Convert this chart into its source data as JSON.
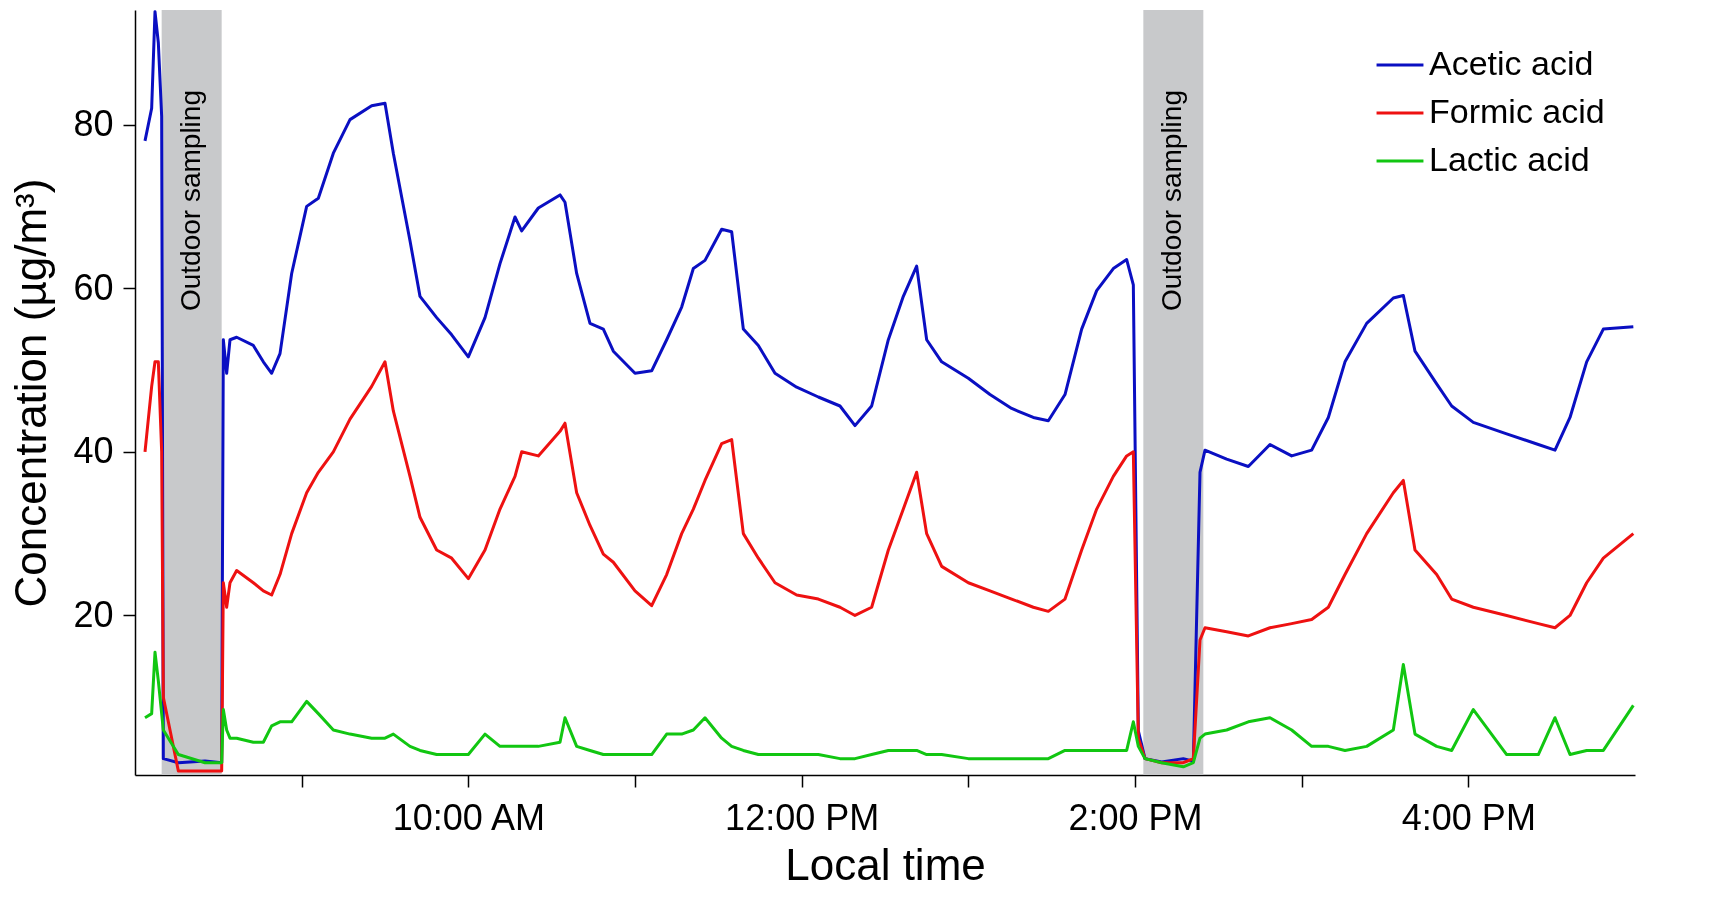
{
  "chart_data": {
    "type": "line",
    "xlabel": "Local time",
    "ylabel": "Concentration (µg/m³)",
    "xlim": [
      8.0,
      17.0
    ],
    "ylim": [
      0.5,
      94
    ],
    "xticks": [
      {
        "value": 9,
        "label": null
      },
      {
        "value": 10,
        "label": "10:00 AM"
      },
      {
        "value": 11,
        "label": null
      },
      {
        "value": 12,
        "label": "12:00 PM"
      },
      {
        "value": 13,
        "label": null
      },
      {
        "value": 14,
        "label": "2:00 PM"
      },
      {
        "value": 15,
        "label": null
      },
      {
        "value": 16,
        "label": "4:00 PM"
      }
    ],
    "yticks": [
      20,
      40,
      60,
      80
    ],
    "grid": false,
    "legend": "top right",
    "bands": [
      {
        "axis": "x",
        "from": 8.16,
        "to": 8.52,
        "label": "Outdoor sampling",
        "color": "#c8c9cb"
      },
      {
        "axis": "x",
        "from": 14.05,
        "to": 14.41,
        "label": "Outdoor sampling",
        "color": "#c8c9cb"
      }
    ],
    "x": [
      8.06,
      8.1,
      8.12,
      8.14,
      8.16,
      8.17,
      8.26,
      8.42,
      8.52,
      8.53,
      8.55,
      8.57,
      8.61,
      8.71,
      8.77,
      8.82,
      8.87,
      8.94,
      9.03,
      9.1,
      9.19,
      9.29,
      9.42,
      9.5,
      9.55,
      9.65,
      9.71,
      9.81,
      9.9,
      10.0,
      10.1,
      10.19,
      10.28,
      10.32,
      10.42,
      10.55,
      10.58,
      10.65,
      10.73,
      10.81,
      10.87,
      11.0,
      11.1,
      11.19,
      11.28,
      11.35,
      11.42,
      11.52,
      11.58,
      11.65,
      11.74,
      11.84,
      11.97,
      12.1,
      12.23,
      12.32,
      12.42,
      12.52,
      12.61,
      12.69,
      12.75,
      12.84,
      13.0,
      13.13,
      13.26,
      13.39,
      13.48,
      13.58,
      13.68,
      13.77,
      13.87,
      13.95,
      13.99,
      14.02,
      14.06,
      14.16,
      14.29,
      14.35,
      14.39,
      14.42,
      14.55,
      14.68,
      14.81,
      14.94,
      15.06,
      15.16,
      15.26,
      15.39,
      15.55,
      15.61,
      15.68,
      15.81,
      15.9,
      16.03,
      16.23,
      16.42,
      16.52,
      16.61,
      16.71,
      16.81,
      16.99
    ],
    "series": [
      {
        "name": "Acetic acid",
        "color": "#0a0fc2",
        "values": [
          78,
          82,
          93.8,
          90,
          81,
          2.5,
          2,
          2.2,
          2,
          53.7,
          49.6,
          53.7,
          54,
          53,
          51,
          49.6,
          52,
          61.8,
          70,
          71,
          76.5,
          80.6,
          82.3,
          82.6,
          76.5,
          65.8,
          59,
          56.4,
          54.3,
          51.6,
          56.4,
          63,
          68.7,
          67,
          69.8,
          71.4,
          70.5,
          61.8,
          55.7,
          55,
          52.3,
          49.6,
          49.9,
          53.7,
          57.7,
          62.4,
          63.4,
          67.2,
          66.9,
          55,
          53,
          49.6,
          47.9,
          46.7,
          45.6,
          43.2,
          45.6,
          53.7,
          59,
          62.7,
          53.7,
          51,
          49,
          47,
          45.3,
          44.2,
          43.8,
          47,
          55,
          59.7,
          62.4,
          63.5,
          60.4,
          5.9,
          2.5,
          2.1,
          2.5,
          2.2,
          37.5,
          40.2,
          39.1,
          38.2,
          40.9,
          39.5,
          40.2,
          44.2,
          51,
          55.7,
          58.8,
          59.1,
          52.3,
          48.3,
          45.6,
          43.6,
          42.2,
          40.9,
          40.2,
          44.2,
          51,
          55,
          55.3
        ]
      },
      {
        "name": "Formic acid",
        "color": "#ee1111",
        "values": [
          40,
          48,
          51,
          51,
          40,
          10,
          1,
          1,
          1,
          24,
          21,
          24,
          25.5,
          24,
          23,
          22.5,
          25,
          30,
          35,
          37.5,
          40,
          44,
          48,
          51,
          45,
          37,
          32,
          28,
          27,
          24.5,
          28,
          33,
          37,
          40,
          39.5,
          42.5,
          43.5,
          35,
          31,
          27.5,
          26.5,
          23,
          21.2,
          25,
          30,
          33,
          36.5,
          41,
          41.5,
          30,
          27,
          24,
          22.5,
          22,
          21,
          20,
          21,
          28,
          33,
          37.5,
          30,
          26,
          24,
          23,
          22,
          21,
          20.5,
          22,
          28,
          33,
          37,
          39.5,
          40,
          5,
          2.5,
          2,
          2,
          2.5,
          17,
          18.5,
          18,
          17.5,
          18.5,
          19,
          19.5,
          21,
          25,
          30,
          35,
          36.5,
          28,
          25,
          22,
          21,
          20,
          19,
          18.5,
          20,
          24,
          27,
          30
        ]
      },
      {
        "name": "Lactic acid",
        "color": "#11c611",
        "values": [
          7.5,
          8,
          15.5,
          12,
          8,
          6,
          3,
          2,
          2,
          8.5,
          6,
          5,
          5,
          4.5,
          4.5,
          6.5,
          7,
          7,
          9.5,
          8,
          6,
          5.5,
          5,
          5,
          5.5,
          4,
          3.5,
          3,
          3,
          3,
          5.5,
          4,
          4,
          4,
          4,
          4.5,
          7.5,
          4,
          3.5,
          3,
          3,
          3,
          3,
          5.5,
          5.5,
          6,
          7.5,
          5,
          4,
          3.5,
          3,
          3,
          3,
          3,
          2.5,
          2.5,
          3,
          3.5,
          3.5,
          3.5,
          3,
          3,
          2.5,
          2.5,
          2.5,
          2.5,
          2.5,
          3.5,
          3.5,
          3.5,
          3.5,
          3.5,
          7,
          4,
          2.5,
          2,
          1.5,
          2,
          5,
          5.5,
          6,
          7,
          7.5,
          6,
          4,
          4,
          3.5,
          4,
          6,
          14,
          5.5,
          4,
          3.5,
          8.5,
          3,
          3,
          7.5,
          3,
          3.5,
          3.5,
          9
        ]
      }
    ]
  }
}
